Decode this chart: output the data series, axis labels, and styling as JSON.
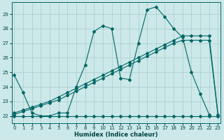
{
  "xlabel": "Humidex (Indice chaleur)",
  "background_color": "#cce8e8",
  "grid_color": "#aacccc",
  "line_color": "#006666",
  "ylim": [
    21.5,
    29.8
  ],
  "xlim": [
    -0.3,
    23.3
  ],
  "yticks": [
    22,
    23,
    24,
    25,
    26,
    27,
    28,
    29
  ],
  "xticks": [
    0,
    1,
    2,
    3,
    4,
    5,
    6,
    7,
    8,
    9,
    10,
    11,
    12,
    13,
    14,
    15,
    16,
    17,
    18,
    19,
    20,
    21,
    22,
    23
  ],
  "series1_x": [
    0,
    1,
    2,
    3,
    4,
    5,
    6,
    7,
    8,
    9,
    10,
    11,
    12,
    13,
    14,
    15,
    16,
    17,
    18,
    19,
    20,
    21,
    22
  ],
  "series1_y": [
    24.8,
    23.6,
    22.2,
    22.0,
    22.0,
    22.2,
    22.2,
    24.0,
    25.5,
    27.8,
    28.2,
    28.0,
    24.6,
    24.5,
    27.0,
    29.3,
    29.5,
    28.8,
    28.0,
    27.4,
    25.0,
    23.5,
    22.1
  ],
  "series2_x": [
    0,
    1,
    2,
    3,
    4,
    5,
    6,
    7,
    8,
    9,
    10,
    11,
    12,
    13,
    14,
    15,
    16,
    17,
    18,
    19,
    20,
    21,
    22,
    23
  ],
  "series2_y": [
    22.0,
    22.0,
    22.0,
    22.0,
    22.0,
    22.0,
    22.0,
    22.0,
    22.0,
    22.0,
    22.0,
    22.0,
    22.0,
    22.0,
    22.0,
    22.0,
    22.0,
    22.0,
    22.0,
    22.0,
    22.0,
    22.0,
    22.0,
    22.0
  ],
  "series3_x": [
    0,
    1,
    2,
    3,
    4,
    5,
    6,
    7,
    8,
    9,
    10,
    11,
    12,
    13,
    14,
    15,
    16,
    17,
    18,
    19,
    20,
    21,
    22,
    23
  ],
  "series3_y": [
    22.2,
    22.4,
    22.6,
    22.8,
    23.0,
    23.3,
    23.6,
    23.9,
    24.2,
    24.5,
    24.8,
    25.1,
    25.4,
    25.7,
    26.0,
    26.3,
    26.6,
    26.9,
    27.2,
    27.5,
    27.5,
    27.5,
    27.5,
    22.1
  ],
  "series4_x": [
    0,
    1,
    2,
    3,
    4,
    5,
    6,
    7,
    8,
    9,
    10,
    11,
    12,
    13,
    14,
    15,
    16,
    17,
    18,
    19,
    20,
    21,
    22,
    23
  ],
  "series4_y": [
    22.1,
    22.3,
    22.5,
    22.7,
    22.9,
    23.1,
    23.4,
    23.7,
    24.0,
    24.3,
    24.6,
    24.9,
    25.2,
    25.5,
    25.8,
    26.1,
    26.4,
    26.7,
    27.0,
    27.2,
    27.2,
    27.2,
    27.2,
    22.0
  ]
}
